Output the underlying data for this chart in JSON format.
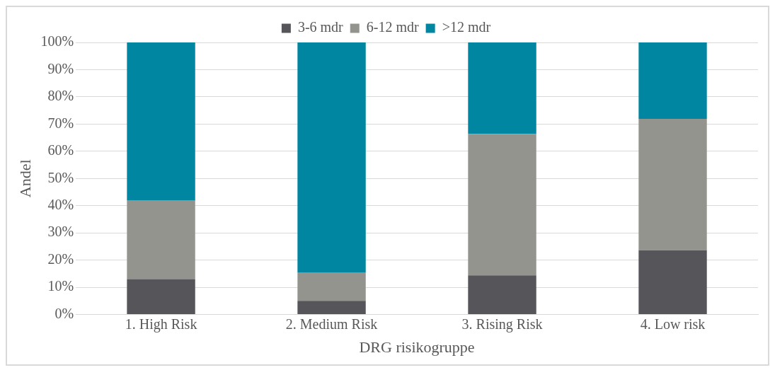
{
  "chart_data": {
    "type": "bar",
    "stacked": true,
    "xlabel": "DRG risikogruppe",
    "ylabel": "Andel",
    "categories": [
      "1. High Risk",
      "2. Medium Risk",
      "3. Rising Risk",
      "4. Low risk"
    ],
    "series": [
      {
        "name": "3-6 mdr",
        "color": "#55555a",
        "values": [
          13,
          5,
          14.4,
          23.6
        ]
      },
      {
        "name": "6-12 mdr",
        "color": "#93948e",
        "values": [
          29,
          10.5,
          52,
          48.3
        ]
      },
      {
        "name": ">12 mdr",
        "color": "#0086a0",
        "values": [
          58,
          84.5,
          33.6,
          28.1
        ]
      }
    ],
    "ylim": [
      0,
      100
    ],
    "yticks": [
      {
        "value": 0,
        "label": "0%"
      },
      {
        "value": 10,
        "label": "10%"
      },
      {
        "value": 20,
        "label": "20%"
      },
      {
        "value": 30,
        "label": "30%"
      },
      {
        "value": 40,
        "label": "40%"
      },
      {
        "value": 50,
        "label": "50%"
      },
      {
        "value": 60,
        "label": "60%"
      },
      {
        "value": 70,
        "label": "70%"
      },
      {
        "value": 80,
        "label": "80%"
      },
      {
        "value": 90,
        "label": "90%"
      },
      {
        "value": 100,
        "label": "100%"
      }
    ],
    "grid": "y",
    "legend": "top"
  }
}
